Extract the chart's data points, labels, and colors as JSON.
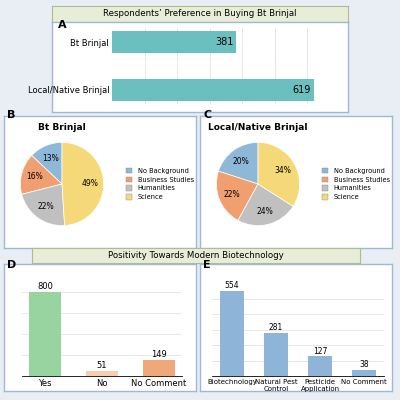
{
  "title_top": "Respondents’ Preference in Buying Bt Brinjal",
  "title_bottom": "Positivity Towards Modern Biotechnology",
  "panel_A": {
    "label": "A",
    "categories": [
      "Local/Native Brinjal",
      "Bt Brinjal"
    ],
    "values": [
      619,
      381
    ],
    "bar_color": "#6BBFBE"
  },
  "panel_B": {
    "label": "B",
    "title": "Bt Brinjal",
    "slices": [
      13,
      16,
      22,
      49
    ],
    "colors": [
      "#8EB8D8",
      "#F0A070",
      "#C0C0C0",
      "#F5D878"
    ],
    "labels": [
      "No Background",
      "Business Studies",
      "Humanities",
      "Science"
    ],
    "startangle": 90
  },
  "panel_C": {
    "label": "C",
    "title": "Local/Native Brinjal",
    "slices": [
      20,
      22,
      24,
      34
    ],
    "colors": [
      "#8EB8D8",
      "#F0A070",
      "#C0C0C0",
      "#F5D878"
    ],
    "labels": [
      "No Background",
      "Business Studies",
      "Humanities",
      "Science"
    ],
    "startangle": 90
  },
  "panel_D": {
    "label": "D",
    "categories": [
      "Yes",
      "No",
      "No Comment"
    ],
    "values": [
      800,
      51,
      149
    ],
    "colors": [
      "#98D4A0",
      "#F8CEB0",
      "#F0A878"
    ]
  },
  "panel_E": {
    "label": "E",
    "categories": [
      "Biotechnology",
      "Natural Pest\nControl",
      "Pesticide\nApplication",
      "No Comment"
    ],
    "values": [
      554,
      281,
      127,
      38
    ],
    "bar_color": "#8EB4D8"
  },
  "bg_color": "#E8EEF4",
  "box_color": "#A0B8D8",
  "title_box_color": "#E8EDD8"
}
